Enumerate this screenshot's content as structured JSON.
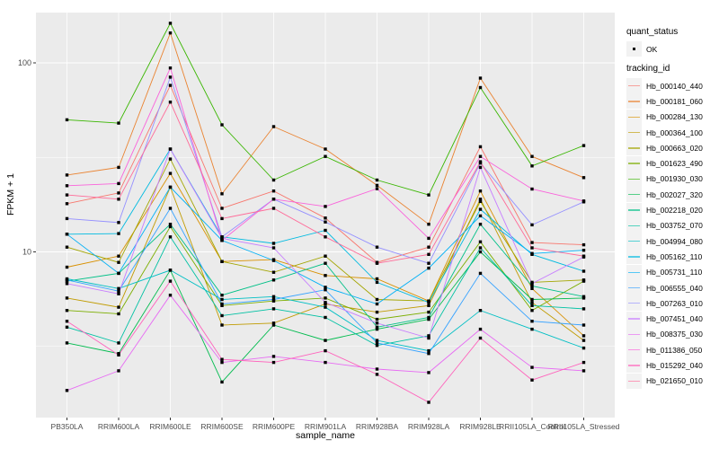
{
  "chart_data": {
    "type": "line",
    "title": "",
    "xlabel": "sample_name",
    "ylabel": "FPKM + 1",
    "y_scale": "log10",
    "ylim": [
      1.33,
      185
    ],
    "grid": true,
    "legend_position": "right",
    "y_ticks": [
      {
        "label": "100",
        "value": 100
      },
      {
        "label": "10",
        "value": 10
      }
    ],
    "y_minor_breaks": [
      31.623,
      3.1623
    ],
    "categories": [
      "PB350LA",
      "RRIM600LA",
      "RRIM600LE",
      "RRIM600SE",
      "RRIM600PE",
      "RRIM901LA",
      "RRIM928BA",
      "RRIM928LA",
      "RRIM928LE",
      "RRII105LA_Control",
      "RRII105LA_Stressed"
    ],
    "series": [
      {
        "name": "Hb_000140_440",
        "color": "#F8766D",
        "values": [
          18.0,
          20.5,
          76,
          17.0,
          21.0,
          15.1,
          8.8,
          10.6,
          36,
          11.2,
          10.9
        ]
      },
      {
        "name": "Hb_000181_060",
        "color": "#EA8331",
        "values": [
          25.5,
          28.0,
          144,
          20.3,
          46,
          35,
          22.5,
          14.0,
          83,
          32,
          24.7
        ]
      },
      {
        "name": "Hb_000284_130",
        "color": "#D89000",
        "values": [
          8.3,
          9.5,
          26,
          8.9,
          9.1,
          7.5,
          7.2,
          5.5,
          21,
          6.4,
          3.6
        ]
      },
      {
        "name": "Hb_000364_100",
        "color": "#C09B00",
        "values": [
          5.7,
          5.1,
          22,
          4.1,
          4.2,
          5.3,
          4.8,
          5.2,
          19,
          5.4,
          3.4
        ]
      },
      {
        "name": "Hb_000663_020",
        "color": "#A3A500",
        "values": [
          10.6,
          8.8,
          31,
          8.9,
          7.8,
          9.5,
          5.6,
          5.5,
          18.5,
          6.9,
          7.1
        ]
      },
      {
        "name": "Hb_001623_490",
        "color": "#7CAE00",
        "values": [
          4.9,
          4.7,
          13.6,
          5.2,
          5.5,
          5.7,
          4.4,
          4.8,
          11.3,
          4.9,
          7.0
        ]
      },
      {
        "name": "Hb_001930_030",
        "color": "#39B600",
        "values": [
          50,
          48,
          162,
          47,
          24,
          32,
          24,
          20,
          74,
          28.5,
          36.5
        ]
      },
      {
        "name": "Hb_002027_320",
        "color": "#00BB4E",
        "values": [
          3.3,
          2.9,
          8.0,
          2.05,
          4.1,
          3.4,
          3.9,
          4.4,
          10.0,
          5.6,
          5.7
        ]
      },
      {
        "name": "Hb_002218_020",
        "color": "#00C087",
        "values": [
          7.0,
          7.7,
          14.0,
          5.9,
          7.1,
          8.7,
          4.0,
          4.5,
          14.0,
          6.6,
          5.8
        ]
      },
      {
        "name": "Hb_003752_070",
        "color": "#00C1A3",
        "values": [
          4.0,
          3.3,
          12.0,
          4.6,
          5.0,
          4.5,
          3.2,
          3.6,
          10.5,
          5.2,
          5.0
        ]
      },
      {
        "name": "Hb_004994_080",
        "color": "#00BFC4",
        "values": [
          7.2,
          6.4,
          8.0,
          5.6,
          5.8,
          5.1,
          3.4,
          3.0,
          4.9,
          3.9,
          3.1
        ]
      },
      {
        "name": "Hb_005162_110",
        "color": "#00BAE0",
        "values": [
          12.4,
          12.5,
          35,
          12.0,
          11.1,
          13.0,
          6.9,
          5.4,
          16.8,
          9.7,
          7.9
        ]
      },
      {
        "name": "Hb_005731_110",
        "color": "#00B0F6",
        "values": [
          12.4,
          7.7,
          22,
          11.5,
          9.0,
          6.5,
          5.3,
          8.2,
          15.5,
          9.8,
          10.2
        ]
      },
      {
        "name": "Hb_006555_040",
        "color": "#35A2FF",
        "values": [
          7.1,
          6.2,
          17,
          5.3,
          5.6,
          6.3,
          3.3,
          2.9,
          7.7,
          4.3,
          4.1
        ]
      },
      {
        "name": "Hb_007263_010",
        "color": "#9590FF",
        "values": [
          15.0,
          14.3,
          84,
          12.0,
          19.0,
          14.4,
          10.6,
          8.7,
          29.5,
          13.9,
          18.4
        ]
      },
      {
        "name": "Hb_007451_040",
        "color": "#C77CFF",
        "values": [
          6.8,
          6.0,
          35,
          11.8,
          10.5,
          5.4,
          4.2,
          3.5,
          28,
          6.8,
          9.4
        ]
      },
      {
        "name": "Hb_008375_030",
        "color": "#E76BF3",
        "values": [
          1.85,
          2.35,
          5.9,
          2.6,
          2.8,
          2.6,
          2.4,
          2.3,
          3.9,
          2.45,
          2.35
        ]
      },
      {
        "name": "Hb_011386_050",
        "color": "#FA62DB",
        "values": [
          22.4,
          23,
          94,
          11.5,
          19.0,
          17.4,
          21.6,
          11.8,
          32,
          21.5,
          18.6
        ]
      },
      {
        "name": "Hb_015292_040",
        "color": "#FF62BC",
        "values": [
          4.3,
          2.85,
          7.0,
          2.7,
          2.6,
          3.0,
          2.25,
          1.6,
          3.5,
          2.1,
          2.6
        ]
      },
      {
        "name": "Hb_021650_010",
        "color": "#FF6A98",
        "values": [
          20.0,
          19.0,
          62,
          15.0,
          17.0,
          12.0,
          8.7,
          9.7,
          30,
          10.5,
          9.5
        ]
      }
    ]
  },
  "legend": {
    "quant_status_title": "quant_status",
    "quant_status_items": [
      {
        "label": "OK",
        "symbol": "point"
      }
    ],
    "tracking_id_title": "tracking_id"
  },
  "colors": {
    "panel_bg": "#EBEBEB",
    "grid": "#FFFFFF",
    "point": "#000000",
    "legend_key_bg": "#F2F2F2",
    "tick_text": "#4D4D4D",
    "tick_mark": "#333333"
  }
}
